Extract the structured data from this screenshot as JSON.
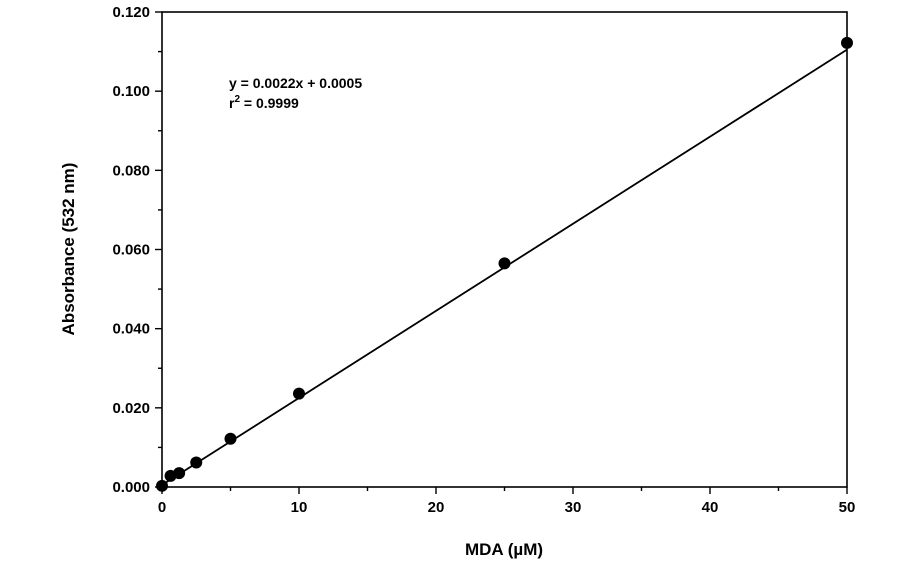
{
  "chart_data": {
    "type": "scatter",
    "xlabel": "MDA (µM)",
    "ylabel": "Absorbance (532 nm)",
    "xlim": [
      0,
      50
    ],
    "ylim": [
      0,
      0.12
    ],
    "x_ticks": [
      "0",
      "10",
      "20",
      "30",
      "40",
      "50"
    ],
    "y_ticks": [
      "0.000",
      "0.020",
      "0.040",
      "0.060",
      "0.080",
      "0.100",
      "0.120"
    ],
    "grid": false,
    "legend": "none",
    "series": [
      {
        "x": [
          0,
          0.625,
          1.25,
          2.5,
          5,
          10,
          25,
          50
        ],
        "y": [
          0.0003,
          0.0028,
          0.0035,
          0.0062,
          0.0122,
          0.0236,
          0.0565,
          0.1122
        ]
      }
    ],
    "fit_line": {
      "slope": 0.0022,
      "intercept": 0.0005,
      "x_range": [
        0,
        50
      ]
    },
    "annotations": {
      "equation": "y = 0.0022x + 0.0005",
      "r2_prefix": "r",
      "r2_superscript": "2",
      "r2_value": " = 0.9999"
    }
  }
}
